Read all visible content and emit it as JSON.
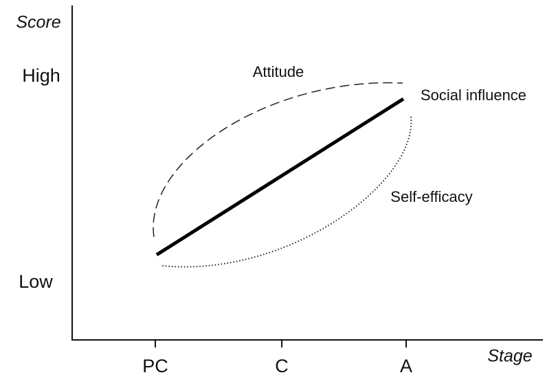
{
  "axes": {
    "y_label": "Score",
    "x_label": "Stage",
    "y_levels": [
      "High",
      "Low"
    ],
    "x_stages": [
      "PC",
      "C",
      "A"
    ]
  },
  "curves": [
    {
      "label": "Attitude"
    },
    {
      "label": "Social influence"
    },
    {
      "label": "Self-efficacy"
    }
  ]
}
